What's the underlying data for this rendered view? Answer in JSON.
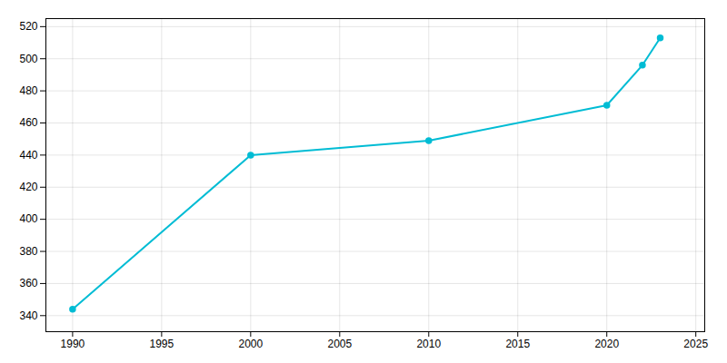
{
  "chart_data": {
    "type": "line",
    "x": [
      1990,
      2000,
      2010,
      2020,
      2022,
      2023
    ],
    "values": [
      344,
      440,
      449,
      471,
      496,
      513
    ],
    "color": "#00BCD4",
    "marker": "circle",
    "xlim": [
      1988.5,
      2025.5
    ],
    "ylim": [
      330,
      525
    ],
    "xticks": [
      1990,
      1995,
      2000,
      2005,
      2010,
      2015,
      2020,
      2025
    ],
    "yticks": [
      340,
      360,
      380,
      400,
      420,
      440,
      460,
      480,
      500,
      520
    ],
    "grid": true
  }
}
